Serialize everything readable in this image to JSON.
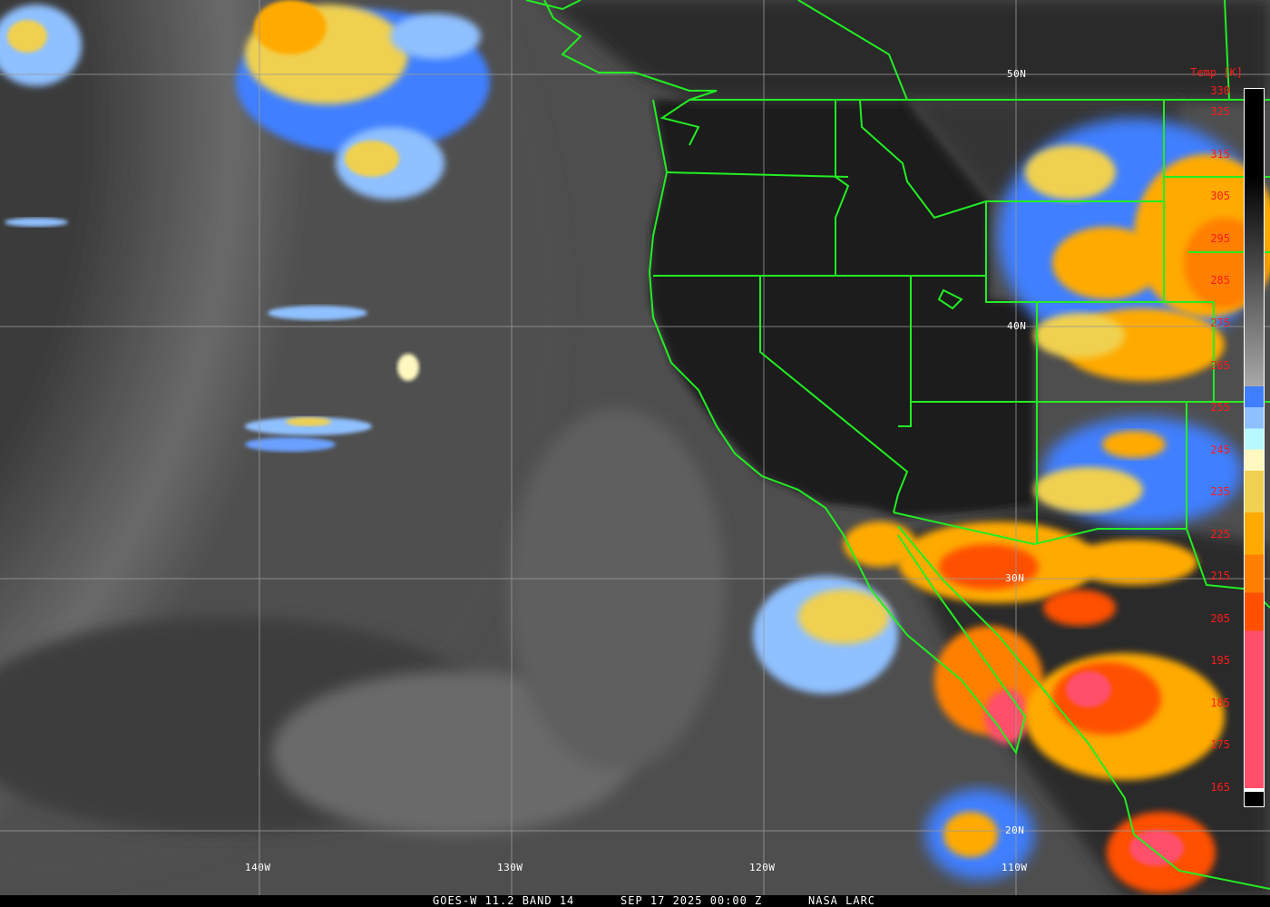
{
  "caption": {
    "satellite": "GOES-W 11.2 BAND 14",
    "datetime": "SEP 17 2025 00:00 Z",
    "source": "NASA LARC"
  },
  "latitude_labels": [
    "50N",
    "40N",
    "30N",
    "20N"
  ],
  "longitude_labels": [
    "140W",
    "130W",
    "120W",
    "110W"
  ],
  "colorbar": {
    "title": "Temp [K]",
    "ticks": [
      "330",
      "325",
      "315",
      "305",
      "295",
      "285",
      "275",
      "265",
      "255",
      "245",
      "235",
      "225",
      "215",
      "205",
      "195",
      "185",
      "175",
      "165"
    ],
    "range_k": [
      330,
      165
    ],
    "colors": {
      "warm_top": "#000000",
      "cold_gray": "#a8a8a8",
      "blue": "#3f7fff",
      "light_blue": "#8fc0ff",
      "cyan": "#b8f8ff",
      "cream": "#fff8c0",
      "yellow": "#f0d050",
      "amber": "#ffaa00",
      "orange": "#ff8000",
      "red_orange": "#ff5000",
      "pink": "#ff4f6a"
    }
  },
  "overlay_colors": {
    "borders": "#22ee22",
    "grid": "#9a9a9a",
    "labels": "#ffffff",
    "tick_labels": "#ff1a1a"
  }
}
